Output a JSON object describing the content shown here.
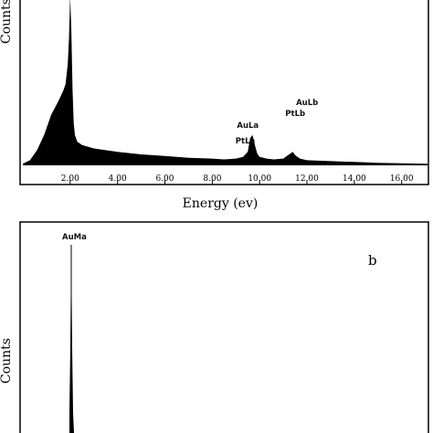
{
  "chart_data": [
    {
      "panel": "a",
      "type": "area",
      "title": "",
      "xlabel": "Energy (ev)",
      "ylabel": "Counts",
      "xlim": [
        0,
        17.1
      ],
      "ylim": [
        0,
        100
      ],
      "x_ticks": [
        2.0,
        4.0,
        6.0,
        8.0,
        10.0,
        12.0,
        14.0,
        16.0
      ],
      "x_tick_labels": [
        "2.00",
        "4.00",
        "6.00",
        "8.00",
        "10.00",
        "12.00",
        "14.00",
        "16.00"
      ],
      "grid": false,
      "series": [
        {
          "x": [
            0.0,
            0.3,
            0.6,
            0.9,
            1.2,
            1.5,
            1.7,
            1.8,
            1.9,
            1.95,
            2.0,
            2.05,
            2.1,
            2.15,
            2.2,
            2.3,
            2.5,
            3.0,
            4.0,
            5.0,
            6.0,
            7.0,
            8.0,
            8.5,
            9.0,
            9.3,
            9.5,
            9.6,
            9.7,
            9.8,
            9.9,
            10.0,
            10.3,
            10.6,
            11.0,
            11.2,
            11.4,
            11.5,
            11.7,
            12.0,
            13.0,
            14.0,
            15.0,
            16.0,
            17.1
          ],
          "y": [
            1,
            3,
            9,
            18,
            30,
            38,
            44,
            48,
            60,
            75,
            100,
            80,
            45,
            25,
            18,
            14,
            12,
            10,
            8,
            6.5,
            5.5,
            4.5,
            4,
            3.5,
            4,
            5,
            8,
            16,
            18,
            12,
            7,
            5,
            4,
            3.5,
            4,
            6,
            8,
            6,
            4,
            3,
            2.5,
            2,
            1.5,
            1.2,
            1
          ]
        }
      ],
      "peak_labels": [
        {
          "text": "PtLa",
          "x": 9.6
        },
        {
          "text": "AuLa",
          "x": 9.7
        },
        {
          "text": "PtLb",
          "x": 11.2
        },
        {
          "text": "AuLb",
          "x": 11.5
        }
      ]
    },
    {
      "panel": "b",
      "type": "area",
      "title": "",
      "xlabel": "",
      "ylabel": "Counts",
      "panel_letter": "b",
      "grid": false,
      "peak_labels": [
        {
          "text": "AuMa",
          "x": 2.12
        }
      ]
    }
  ]
}
